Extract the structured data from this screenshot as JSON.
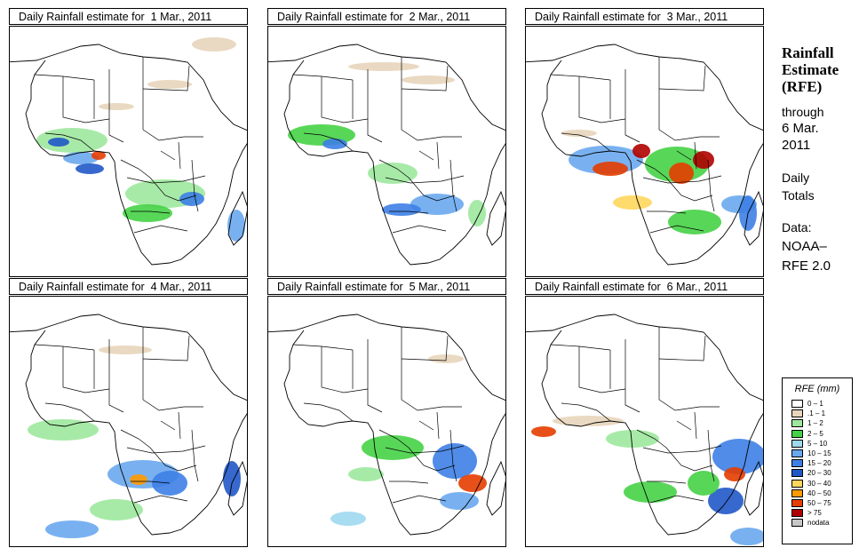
{
  "panels": [
    {
      "title": "Daily Rainfall estimate for  1 Mar., 2011",
      "day": 1
    },
    {
      "title": "Daily Rainfall estimate for  2 Mar., 2011",
      "day": 2
    },
    {
      "title": "Daily Rainfall estimate for  3 Mar., 2011",
      "day": 3
    },
    {
      "title": "Daily Rainfall estimate for  4 Mar., 2011",
      "day": 4
    },
    {
      "title": "Daily Rainfall estimate for  5 Mar., 2011",
      "day": 5
    },
    {
      "title": "Daily Rainfall estimate for  6 Mar., 2011",
      "day": 6
    }
  ],
  "heading": {
    "line1": "Rainfall",
    "line2": "Estimate",
    "line3": "(RFE)"
  },
  "info": {
    "through": "through",
    "date": "6 Mar.",
    "year": "2011",
    "daily": "Daily",
    "totals": "Totals",
    "data_label": "Data:",
    "source1": "NOAA–",
    "source2": "RFE 2.0"
  },
  "legend": {
    "title": "RFE (mm)",
    "items": [
      {
        "label": "0 – 1",
        "color": "#ffffff"
      },
      {
        "label": ".1 – 1",
        "color": "#e8d5bb"
      },
      {
        "label": "1 – 2",
        "color": "#9de89d"
      },
      {
        "label": "2 – 5",
        "color": "#46d246"
      },
      {
        "label": "5 – 10",
        "color": "#9fd8ef"
      },
      {
        "label": "10 – 15",
        "color": "#6aa8ee"
      },
      {
        "label": "15 – 20",
        "color": "#3d7fe6"
      },
      {
        "label": "20 – 30",
        "color": "#2158c8"
      },
      {
        "label": "30 – 40",
        "color": "#ffd65c"
      },
      {
        "label": "40 – 50",
        "color": "#ff9a00"
      },
      {
        "label": "50 – 75",
        "color": "#e63d00"
      },
      {
        "label": "> 75",
        "color": "#b00000"
      },
      {
        "label": "nodata",
        "color": "#c8c8c8"
      }
    ]
  }
}
